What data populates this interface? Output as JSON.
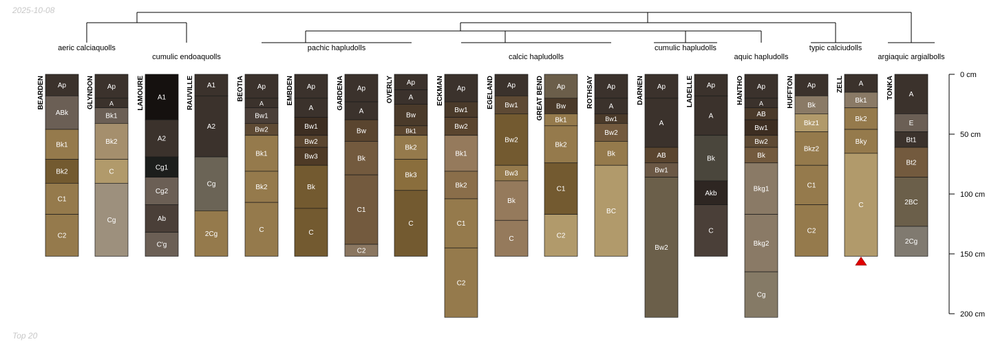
{
  "date_label": "2025-10-08",
  "footer_label": "Top 20",
  "depth_axis": {
    "min_cm": 0,
    "max_cm": 200,
    "ticks": [
      "0 cm",
      "50 cm",
      "100 cm",
      "150 cm",
      "200 cm"
    ]
  },
  "taxonomy_groups": [
    {
      "label": "aeric calciaquolls"
    },
    {
      "label": "cumulic endoaquolls"
    },
    {
      "label": "pachic hapludolls"
    },
    {
      "label": "calcic hapludolls"
    },
    {
      "label": "cumulic hapludolls"
    },
    {
      "label": "aquic hapludolls"
    },
    {
      "label": "typic calciudolls"
    },
    {
      "label": "argiaquic argialbolls"
    }
  ],
  "profiles": [
    {
      "name": "BEARDEN",
      "horizons": [
        {
          "name": "Ap",
          "top": 0,
          "bottom": 18,
          "color": "#3b322c"
        },
        {
          "name": "ABk",
          "top": 18,
          "bottom": 46,
          "color": "#6b5f55"
        },
        {
          "name": "Bk1",
          "top": 46,
          "bottom": 71,
          "color": "#957a4c"
        },
        {
          "name": "Bk2",
          "top": 71,
          "bottom": 91,
          "color": "#735a30"
        },
        {
          "name": "C1",
          "top": 91,
          "bottom": 117,
          "color": "#957a4c"
        },
        {
          "name": "C2",
          "top": 117,
          "bottom": 152,
          "color": "#957a4c"
        }
      ]
    },
    {
      "name": "GLYNDON",
      "horizons": [
        {
          "name": "Ap",
          "top": 0,
          "bottom": 20,
          "color": "#3b322c"
        },
        {
          "name": "A",
          "top": 20,
          "bottom": 28,
          "color": "#3b322c"
        },
        {
          "name": "Bk1",
          "top": 28,
          "bottom": 41,
          "color": "#6b5f55"
        },
        {
          "name": "Bk2",
          "top": 41,
          "bottom": 71,
          "color": "#a58f6d"
        },
        {
          "name": "C",
          "top": 71,
          "bottom": 91,
          "color": "#b19a6b"
        },
        {
          "name": "Cg",
          "top": 91,
          "bottom": 152,
          "color": "#9d907d"
        }
      ]
    },
    {
      "name": "LAMOURE",
      "horizons": [
        {
          "name": "A1",
          "top": 0,
          "bottom": 38,
          "color": "#15110f"
        },
        {
          "name": "A2",
          "top": 38,
          "bottom": 69,
          "color": "#3b322c"
        },
        {
          "name": "Cg1",
          "top": 69,
          "bottom": 86,
          "color": "#1c1e1c"
        },
        {
          "name": "Cg2",
          "top": 86,
          "bottom": 109,
          "color": "#6b5f55"
        },
        {
          "name": "Ab",
          "top": 109,
          "bottom": 132,
          "color": "#4a3f38"
        },
        {
          "name": "C'g",
          "top": 132,
          "bottom": 152,
          "color": "#6b5f55"
        }
      ]
    },
    {
      "name": "RAUVILLE",
      "horizons": [
        {
          "name": "A1",
          "top": 0,
          "bottom": 18,
          "color": "#3b322c"
        },
        {
          "name": "A2",
          "top": 18,
          "bottom": 69,
          "color": "#3b322c"
        },
        {
          "name": "Cg",
          "top": 69,
          "bottom": 114,
          "color": "#6b6456"
        },
        {
          "name": "2Cg",
          "top": 114,
          "bottom": 152,
          "color": "#957a4c"
        }
      ]
    },
    {
      "name": "BEOTIA",
      "horizons": [
        {
          "name": "Ap",
          "top": 0,
          "bottom": 20,
          "color": "#3b322c"
        },
        {
          "name": "A",
          "top": 20,
          "bottom": 28,
          "color": "#3b322c"
        },
        {
          "name": "Bw1",
          "top": 28,
          "bottom": 41,
          "color": "#4a3f38"
        },
        {
          "name": "Bw2",
          "top": 41,
          "bottom": 51,
          "color": "#5e4a34"
        },
        {
          "name": "Bk1",
          "top": 51,
          "bottom": 81,
          "color": "#957a4c"
        },
        {
          "name": "Bk2",
          "top": 81,
          "bottom": 107,
          "color": "#957a4c"
        },
        {
          "name": "C",
          "top": 107,
          "bottom": 152,
          "color": "#957a4c"
        }
      ]
    },
    {
      "name": "EMBDEN",
      "horizons": [
        {
          "name": "Ap",
          "top": 0,
          "bottom": 20,
          "color": "#3b322c"
        },
        {
          "name": "A",
          "top": 20,
          "bottom": 36,
          "color": "#3b322c"
        },
        {
          "name": "Bw1",
          "top": 36,
          "bottom": 51,
          "color": "#3d2e22"
        },
        {
          "name": "Bw2",
          "top": 51,
          "bottom": 61,
          "color": "#5a452f"
        },
        {
          "name": "Bw3",
          "top": 61,
          "bottom": 76,
          "color": "#4e3a26"
        },
        {
          "name": "Bk",
          "top": 76,
          "bottom": 112,
          "color": "#735a30"
        },
        {
          "name": "C",
          "top": 112,
          "bottom": 152,
          "color": "#735a30"
        }
      ]
    },
    {
      "name": "GARDENA",
      "horizons": [
        {
          "name": "Ap",
          "top": 0,
          "bottom": 23,
          "color": "#3b322c"
        },
        {
          "name": "A",
          "top": 23,
          "bottom": 38,
          "color": "#3b322c"
        },
        {
          "name": "Bw",
          "top": 38,
          "bottom": 56,
          "color": "#5a452f"
        },
        {
          "name": "Bk",
          "top": 56,
          "bottom": 84,
          "color": "#735a3e"
        },
        {
          "name": "C1",
          "top": 84,
          "bottom": 142,
          "color": "#735a3e"
        },
        {
          "name": "C2",
          "top": 142,
          "bottom": 152,
          "color": "#8a7660"
        }
      ]
    },
    {
      "name": "OVERLY",
      "horizons": [
        {
          "name": "Ap",
          "top": 0,
          "bottom": 13,
          "color": "#3b322c"
        },
        {
          "name": "A",
          "top": 13,
          "bottom": 25,
          "color": "#3b322c"
        },
        {
          "name": "Bw",
          "top": 25,
          "bottom": 43,
          "color": "#4a3a2a"
        },
        {
          "name": "Bk1",
          "top": 43,
          "bottom": 51,
          "color": "#5a452f"
        },
        {
          "name": "Bk2",
          "top": 51,
          "bottom": 71,
          "color": "#957a4c"
        },
        {
          "name": "Bk3",
          "top": 71,
          "bottom": 97,
          "color": "#8a6e3d"
        },
        {
          "name": "C",
          "top": 97,
          "bottom": 152,
          "color": "#735a30"
        }
      ]
    },
    {
      "name": "ECKMAN",
      "horizons": [
        {
          "name": "Ap",
          "top": 0,
          "bottom": 23,
          "color": "#3b322c"
        },
        {
          "name": "Bw1",
          "top": 23,
          "bottom": 36,
          "color": "#4a3a2a"
        },
        {
          "name": "Bw2",
          "top": 36,
          "bottom": 51,
          "color": "#5a452f"
        },
        {
          "name": "Bk1",
          "top": 51,
          "bottom": 81,
          "color": "#957a5c"
        },
        {
          "name": "Bk2",
          "top": 81,
          "bottom": 104,
          "color": "#8a6e4a"
        },
        {
          "name": "C1",
          "top": 104,
          "bottom": 145,
          "color": "#957a4c"
        },
        {
          "name": "C2",
          "top": 145,
          "bottom": 203,
          "color": "#957a4c"
        }
      ]
    },
    {
      "name": "EGELAND",
      "horizons": [
        {
          "name": "Ap",
          "top": 0,
          "bottom": 18,
          "color": "#3b322c"
        },
        {
          "name": "Bw1",
          "top": 18,
          "bottom": 33,
          "color": "#5e4a34"
        },
        {
          "name": "Bw2",
          "top": 33,
          "bottom": 76,
          "color": "#735a30"
        },
        {
          "name": "Bw3",
          "top": 76,
          "bottom": 89,
          "color": "#957a4c"
        },
        {
          "name": "Bk",
          "top": 89,
          "bottom": 122,
          "color": "#957a5c"
        },
        {
          "name": "C",
          "top": 122,
          "bottom": 152,
          "color": "#957a5c"
        }
      ]
    },
    {
      "name": "GREAT BEND",
      "horizons": [
        {
          "name": "Ap",
          "top": 0,
          "bottom": 20,
          "color": "#6b5e4a"
        },
        {
          "name": "Bw",
          "top": 20,
          "bottom": 33,
          "color": "#4a3a2a"
        },
        {
          "name": "Bk1",
          "top": 33,
          "bottom": 43,
          "color": "#957a4c"
        },
        {
          "name": "Bk2",
          "top": 43,
          "bottom": 74,
          "color": "#957a4c"
        },
        {
          "name": "C1",
          "top": 74,
          "bottom": 117,
          "color": "#735a30"
        },
        {
          "name": "C2",
          "top": 117,
          "bottom": 152,
          "color": "#b19a6b"
        }
      ]
    },
    {
      "name": "ROTHSAY",
      "horizons": [
        {
          "name": "Ap",
          "top": 0,
          "bottom": 20,
          "color": "#3b322c"
        },
        {
          "name": "A",
          "top": 20,
          "bottom": 33,
          "color": "#3b322c"
        },
        {
          "name": "Bw1",
          "top": 33,
          "bottom": 41,
          "color": "#4a3a2a"
        },
        {
          "name": "Bw2",
          "top": 41,
          "bottom": 56,
          "color": "#735a3e"
        },
        {
          "name": "Bk",
          "top": 56,
          "bottom": 76,
          "color": "#957a4c"
        },
        {
          "name": "BC",
          "top": 76,
          "bottom": 152,
          "color": "#b19a6b"
        }
      ]
    },
    {
      "name": "DARNEN",
      "horizons": [
        {
          "name": "Ap",
          "top": 0,
          "bottom": 20,
          "color": "#3b322c"
        },
        {
          "name": "A",
          "top": 20,
          "bottom": 61,
          "color": "#3b322c"
        },
        {
          "name": "AB",
          "top": 61,
          "bottom": 74,
          "color": "#5a452f"
        },
        {
          "name": "Bw1",
          "top": 74,
          "bottom": 86,
          "color": "#6b5845"
        },
        {
          "name": "Bw2",
          "top": 86,
          "bottom": 203,
          "color": "#6b5f4a"
        }
      ]
    },
    {
      "name": "LADELLE",
      "horizons": [
        {
          "name": "Ap",
          "top": 0,
          "bottom": 18,
          "color": "#3b322c"
        },
        {
          "name": "A",
          "top": 18,
          "bottom": 51,
          "color": "#3b322c"
        },
        {
          "name": "Bk",
          "top": 51,
          "bottom": 89,
          "color": "#4a463c"
        },
        {
          "name": "Akb",
          "top": 89,
          "bottom": 109,
          "color": "#2e2622"
        },
        {
          "name": "C",
          "top": 109,
          "bottom": 152,
          "color": "#4a3f38"
        }
      ]
    },
    {
      "name": "HANTHO",
      "horizons": [
        {
          "name": "Ap",
          "top": 0,
          "bottom": 20,
          "color": "#3b322c"
        },
        {
          "name": "A",
          "top": 20,
          "bottom": 28,
          "color": "#3b322c"
        },
        {
          "name": "AB",
          "top": 28,
          "bottom": 38,
          "color": "#4a3a2a"
        },
        {
          "name": "Bw1",
          "top": 38,
          "bottom": 51,
          "color": "#3d2e22"
        },
        {
          "name": "Bw2",
          "top": 51,
          "bottom": 61,
          "color": "#5e4a34"
        },
        {
          "name": "Bk",
          "top": 61,
          "bottom": 74,
          "color": "#735a3e"
        },
        {
          "name": "Bkg1",
          "top": 74,
          "bottom": 117,
          "color": "#8a7a66"
        },
        {
          "name": "Bkg2",
          "top": 117,
          "bottom": 165,
          "color": "#8a7a66"
        },
        {
          "name": "Cg",
          "top": 165,
          "bottom": 203,
          "color": "#857a66"
        }
      ]
    },
    {
      "name": "HUFFTON",
      "horizons": [
        {
          "name": "Ap",
          "top": 0,
          "bottom": 18,
          "color": "#3b322c"
        },
        {
          "name": "Bk",
          "top": 18,
          "bottom": 33,
          "color": "#8a7a66"
        },
        {
          "name": "Bkz1",
          "top": 33,
          "bottom": 48,
          "color": "#b19a6b"
        },
        {
          "name": "Bkz2",
          "top": 48,
          "bottom": 76,
          "color": "#957a4c"
        },
        {
          "name": "C1",
          "top": 76,
          "bottom": 109,
          "color": "#957a4c"
        },
        {
          "name": "C2",
          "top": 109,
          "bottom": 152,
          "color": "#957a4c"
        }
      ]
    },
    {
      "name": "ZELL",
      "horizons": [
        {
          "name": "A",
          "top": 0,
          "bottom": 15,
          "color": "#3b322c"
        },
        {
          "name": "Bk1",
          "top": 15,
          "bottom": 28,
          "color": "#8a7a66"
        },
        {
          "name": "Bk2",
          "top": 28,
          "bottom": 46,
          "color": "#957a4c"
        },
        {
          "name": "Bky",
          "top": 46,
          "bottom": 66,
          "color": "#957a4c"
        },
        {
          "name": "C",
          "top": 66,
          "bottom": 152,
          "color": "#b19a6b"
        }
      ]
    },
    {
      "name": "TONKA",
      "horizons": [
        {
          "name": "A",
          "top": 0,
          "bottom": 33,
          "color": "#3b322c"
        },
        {
          "name": "E",
          "top": 33,
          "bottom": 48,
          "color": "#6b5f55"
        },
        {
          "name": "Bt1",
          "top": 48,
          "bottom": 61,
          "color": "#3b322c"
        },
        {
          "name": "Bt2",
          "top": 61,
          "bottom": 86,
          "color": "#735a3e"
        },
        {
          "name": "2BC",
          "top": 86,
          "bottom": 127,
          "color": "#6b5f4a"
        },
        {
          "name": "2Cg",
          "top": 127,
          "bottom": 152,
          "color": "#807a70"
        }
      ]
    }
  ],
  "truncation_marker": {
    "profile": "ZELL",
    "color": "#e00000"
  }
}
